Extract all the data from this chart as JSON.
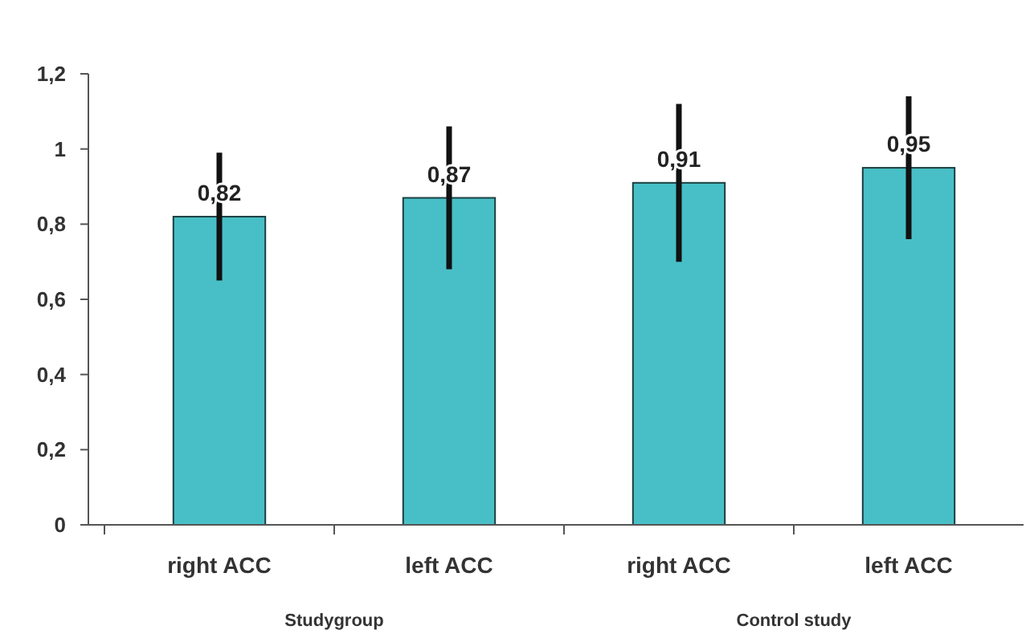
{
  "chart_data": {
    "type": "bar",
    "categories": [
      "right ACC",
      "left ACC",
      "right ACC",
      "left ACC"
    ],
    "values": [
      0.82,
      0.87,
      0.91,
      0.95
    ],
    "errors": [
      [
        0.65,
        0.99
      ],
      [
        0.68,
        1.06
      ],
      [
        0.7,
        1.12
      ],
      [
        0.76,
        1.14
      ]
    ],
    "value_labels": [
      "0,82",
      "0,87",
      "0,91",
      "0,95"
    ],
    "color": "#48bfc6",
    "ylim": [
      0,
      1.2
    ],
    "yticks": [
      {
        "value": 0,
        "label": "0"
      },
      {
        "value": 0.2,
        "label": "0,2"
      },
      {
        "value": 0.4,
        "label": "0,4"
      },
      {
        "value": 0.6,
        "label": "0,6"
      },
      {
        "value": 0.8,
        "label": "0,8"
      },
      {
        "value": 1,
        "label": "1"
      },
      {
        "value": 1.2,
        "label": "1,2"
      }
    ],
    "annotations": [
      "Studygroup",
      "Control study"
    ],
    "grid": false
  }
}
